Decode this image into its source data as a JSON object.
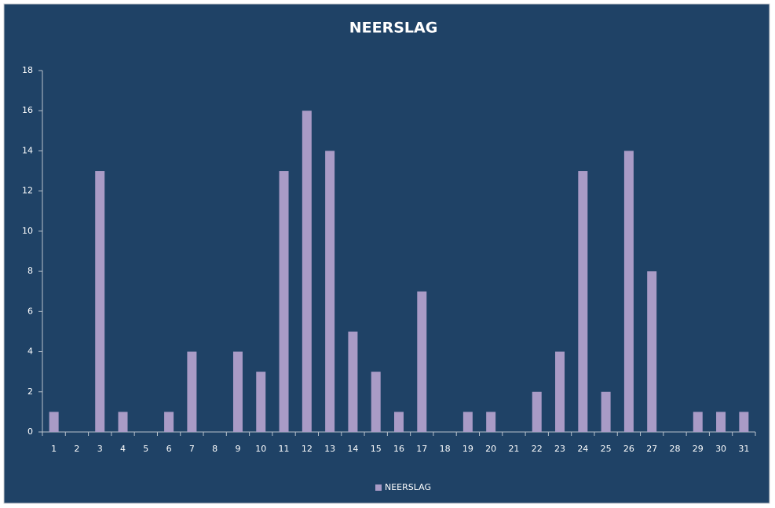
{
  "chart_data": {
    "type": "bar",
    "title": "NEERSLAG",
    "categories": [
      "1",
      "2",
      "3",
      "4",
      "5",
      "6",
      "7",
      "8",
      "9",
      "10",
      "11",
      "12",
      "13",
      "14",
      "15",
      "16",
      "17",
      "18",
      "19",
      "20",
      "21",
      "22",
      "23",
      "24",
      "25",
      "26",
      "27",
      "28",
      "29",
      "30",
      "31"
    ],
    "series": [
      {
        "name": "NEERSLAG",
        "color": "#a99bc6",
        "values": [
          1,
          0,
          13,
          1,
          0,
          1,
          4,
          0,
          4,
          3,
          13,
          16,
          14,
          5,
          3,
          1,
          7,
          0,
          1,
          1,
          0,
          2,
          4,
          13,
          2,
          14,
          8,
          0,
          1,
          1,
          1
        ]
      }
    ],
    "ylim": [
      0,
      18
    ],
    "yticks": [
      0,
      2,
      4,
      6,
      8,
      10,
      12,
      14,
      16,
      18
    ],
    "legend": "bottom"
  }
}
